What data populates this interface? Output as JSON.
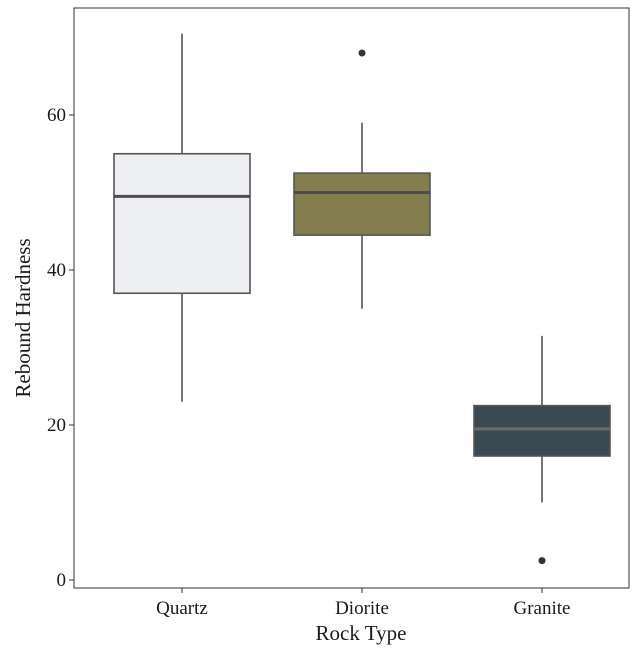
{
  "chart_data": {
    "type": "box",
    "title": "",
    "xlabel": "Rock Type",
    "ylabel": "Rebound Hardness",
    "ylim": [
      0,
      71
    ],
    "yticks": [
      0,
      20,
      40,
      60
    ],
    "grid": false,
    "legend": "none",
    "categories": [
      "Quartz",
      "Diorite",
      "Granite"
    ],
    "boxes": [
      {
        "category": "Quartz",
        "whisker_low": 23,
        "q1": 37,
        "median": 49.5,
        "q3": 55,
        "whisker_high": 70.5,
        "outliers": [],
        "fill": "#eeeff2",
        "median_color": "#4d4d4d"
      },
      {
        "category": "Diorite",
        "whisker_low": 35,
        "q1": 44.5,
        "median": 50,
        "q3": 52.5,
        "whisker_high": 59,
        "outliers": [
          68
        ],
        "fill": "#847e4e",
        "median_color": "#4d4d4d"
      },
      {
        "category": "Granite",
        "whisker_low": 10,
        "q1": 16,
        "median": 19.5,
        "q3": 22.5,
        "whisker_high": 31.5,
        "outliers": [
          2.5
        ],
        "fill": "#3b4a52",
        "median_color": "#6b6b6b"
      }
    ],
    "colors": {
      "line": "#555555",
      "axis": "#333333",
      "outlier": "#333333"
    }
  }
}
